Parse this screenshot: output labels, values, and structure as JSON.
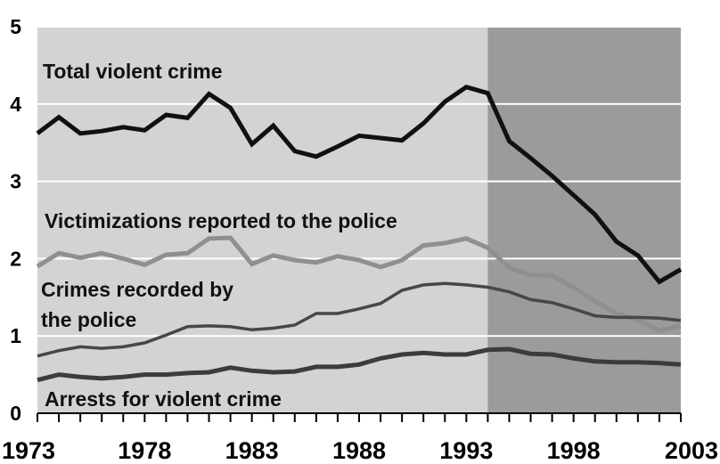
{
  "chart_data": {
    "type": "line",
    "title": "",
    "xlabel": "",
    "ylabel": "",
    "xlim": [
      1973,
      2003
    ],
    "ylim": [
      0,
      5
    ],
    "x_ticks": [
      "1973",
      "1978",
      "1983",
      "1988",
      "1993",
      "1998",
      "2003"
    ],
    "y_ticks": [
      "0",
      "1",
      "2",
      "3",
      "4",
      "5"
    ],
    "grid": "horizontal",
    "shaded_region_start": 1994,
    "colors": {
      "plot_background": "#d3d3d3",
      "shaded_region": "#9b9b9b",
      "grid": "#ffffff"
    },
    "x": [
      1973,
      1974,
      1975,
      1976,
      1977,
      1978,
      1979,
      1980,
      1981,
      1982,
      1983,
      1984,
      1985,
      1986,
      1987,
      1988,
      1989,
      1990,
      1991,
      1992,
      1993,
      1994,
      1995,
      1996,
      1997,
      1998,
      1999,
      2000,
      2001,
      2002,
      2003
    ],
    "series": [
      {
        "name": "Total violent crime",
        "color": "#111111",
        "width": 5,
        "values": [
          3.62,
          3.83,
          3.62,
          3.65,
          3.7,
          3.66,
          3.86,
          3.82,
          4.13,
          3.95,
          3.48,
          3.72,
          3.39,
          3.32,
          3.45,
          3.59,
          3.56,
          3.53,
          3.75,
          4.03,
          4.22,
          4.14,
          3.52,
          3.3,
          3.07,
          2.82,
          2.57,
          2.22,
          2.04,
          1.7,
          1.86
        ]
      },
      {
        "name": "Victimizations reported to the police",
        "color": "#8f8f8f",
        "width": 5,
        "values": [
          1.9,
          2.07,
          2.01,
          2.07,
          2.0,
          1.92,
          2.05,
          2.07,
          2.26,
          2.27,
          1.93,
          2.04,
          1.98,
          1.95,
          2.03,
          1.98,
          1.89,
          1.98,
          2.17,
          2.2,
          2.26,
          2.14,
          1.88,
          1.79,
          1.78,
          1.63,
          1.45,
          1.29,
          1.21,
          1.07,
          1.13
        ]
      },
      {
        "name": "Crimes recorded by the police",
        "color": "#474747",
        "width": 3.5,
        "values": [
          0.74,
          0.81,
          0.86,
          0.84,
          0.86,
          0.91,
          1.01,
          1.12,
          1.13,
          1.12,
          1.08,
          1.1,
          1.14,
          1.29,
          1.29,
          1.35,
          1.42,
          1.59,
          1.66,
          1.68,
          1.66,
          1.63,
          1.57,
          1.47,
          1.43,
          1.35,
          1.26,
          1.24,
          1.24,
          1.23,
          1.2
        ]
      },
      {
        "name": "Arrests for violent crime",
        "color": "#3c3c3c",
        "width": 5,
        "values": [
          0.43,
          0.5,
          0.47,
          0.45,
          0.47,
          0.5,
          0.5,
          0.52,
          0.53,
          0.59,
          0.55,
          0.53,
          0.54,
          0.6,
          0.6,
          0.63,
          0.71,
          0.76,
          0.78,
          0.76,
          0.76,
          0.82,
          0.83,
          0.77,
          0.76,
          0.71,
          0.67,
          0.66,
          0.66,
          0.65,
          0.63
        ]
      }
    ],
    "labels": {
      "total": "Total violent crime",
      "victimizations": "Victimizations reported to the police",
      "recorded_line1": "Crimes recorded by",
      "recorded_line2": "the police",
      "arrests": "Arrests for violent crime"
    }
  }
}
